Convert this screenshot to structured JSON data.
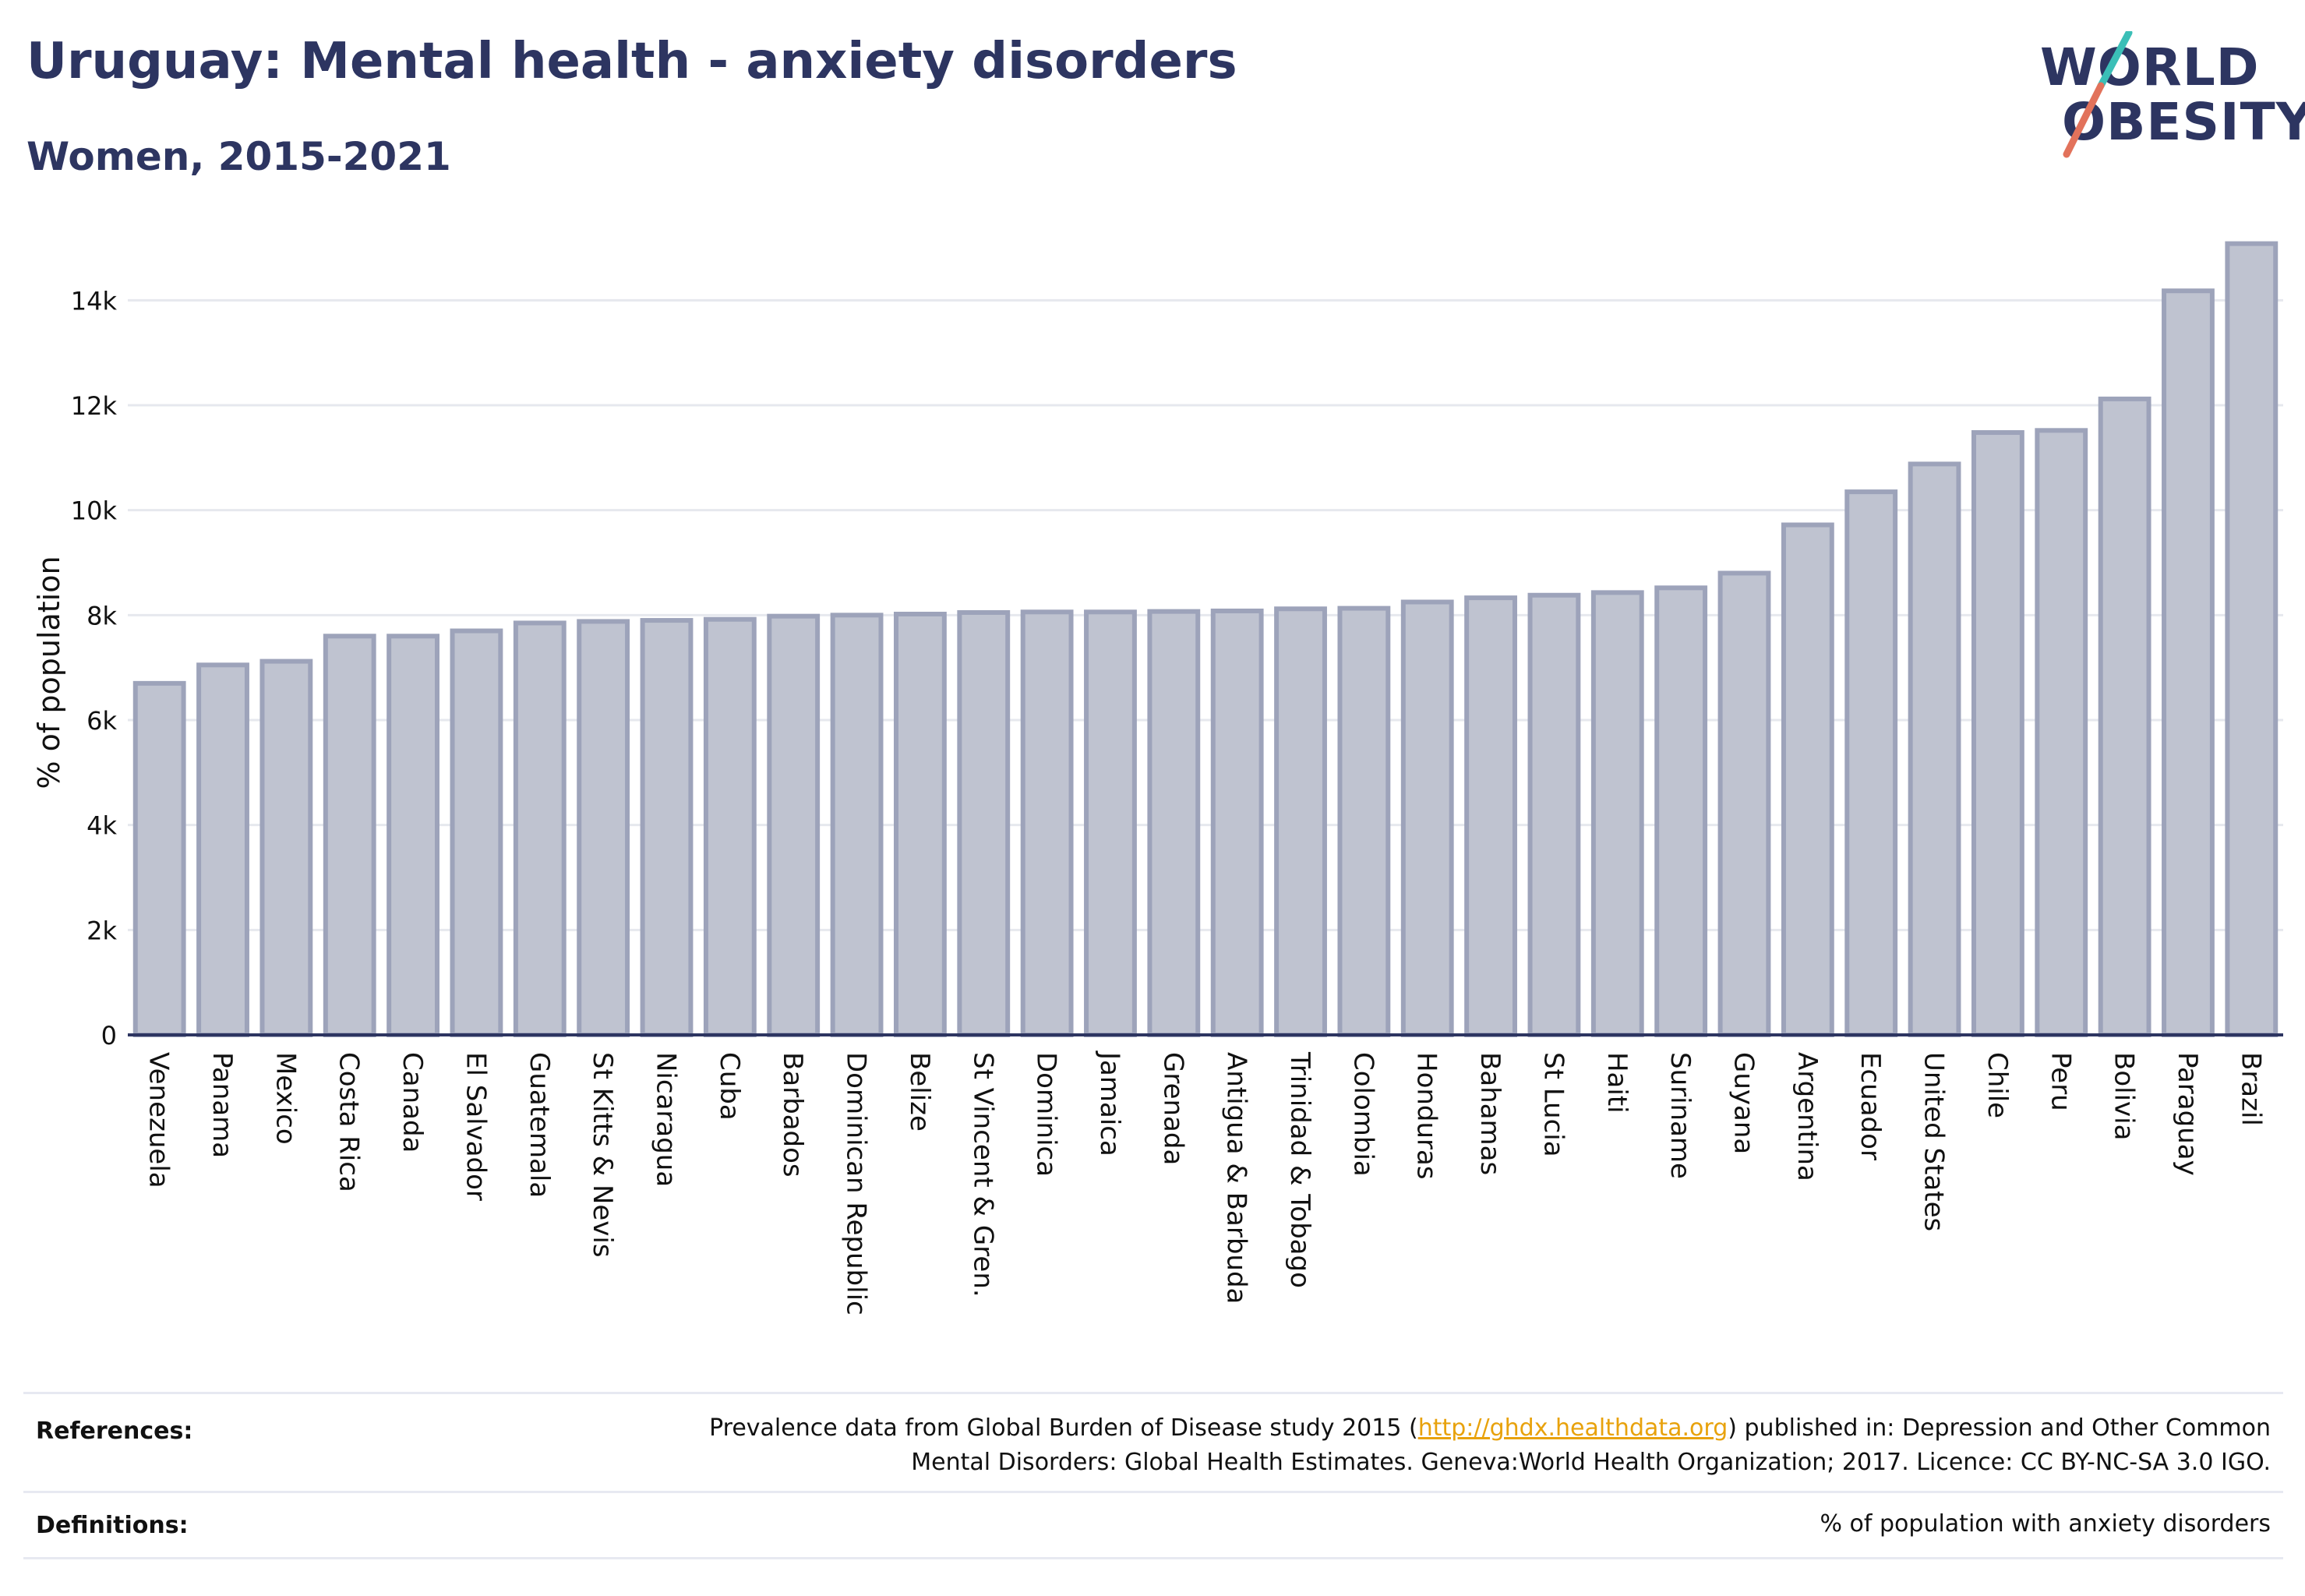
{
  "header": {
    "title": "Uruguay: Mental health - anxiety disorders",
    "subtitle": "Women, 2015-2021"
  },
  "logo": {
    "line1": "WORLD",
    "line2": "OBESITY",
    "colors": {
      "text": "#2d3561",
      "slash_teal": "#3bbfb7",
      "slash_coral": "#e2725b"
    }
  },
  "chart_data": {
    "type": "bar",
    "ylabel": "% of population",
    "ylim": [
      0,
      15000
    ],
    "yticks": [
      0,
      2000,
      4000,
      6000,
      8000,
      10000,
      12000,
      14000
    ],
    "ytick_labels": [
      "0",
      "2k",
      "4k",
      "6k",
      "8k",
      "10k",
      "12k",
      "14k"
    ],
    "grid": true,
    "categories": [
      "Venezuela",
      "Panama",
      "Mexico",
      "Costa Rica",
      "Canada",
      "El Salvador",
      "Guatemala",
      "St Kitts & Nevis",
      "Nicaragua",
      "Cuba",
      "Barbados",
      "Dominican Republic",
      "Belize",
      "St Vincent & Gren.",
      "Dominica",
      "Jamaica",
      "Grenada",
      "Antigua & Barbuda",
      "Trinidad & Tobago",
      "Colombia",
      "Honduras",
      "Bahamas",
      "St Lucia",
      "Haiti",
      "Suriname",
      "Guyana",
      "Argentina",
      "Ecuador",
      "United States",
      "Chile",
      "Peru",
      "Bolivia",
      "Paraguay",
      "Brazil"
    ],
    "values": [
      6700,
      7050,
      7120,
      7600,
      7600,
      7700,
      7850,
      7880,
      7900,
      7920,
      7980,
      8000,
      8020,
      8050,
      8060,
      8060,
      8070,
      8080,
      8120,
      8130,
      8250,
      8330,
      8380,
      8430,
      8520,
      8800,
      9720,
      10350,
      10880,
      11480,
      11520,
      12120,
      14180,
      15080
    ],
    "colors": {
      "bar_fill": "#bfc3d0",
      "bar_stroke": "#9da3ba",
      "axis": "#2d3561",
      "grid": "#e6e8ee"
    }
  },
  "references": {
    "label": "References:",
    "text_before": "Prevalence data from Global Burden of Disease study 2015 (",
    "link": "http://ghdx.healthdata.org",
    "text_after": ") published in: Depression and Other Common",
    "line2": "Mental Disorders: Global Health Estimates. Geneva:World Health Organization; 2017. Licence: CC BY-NC-SA 3.0 IGO."
  },
  "definitions": {
    "label": "Definitions:",
    "text": "% of population with anxiety disorders"
  }
}
